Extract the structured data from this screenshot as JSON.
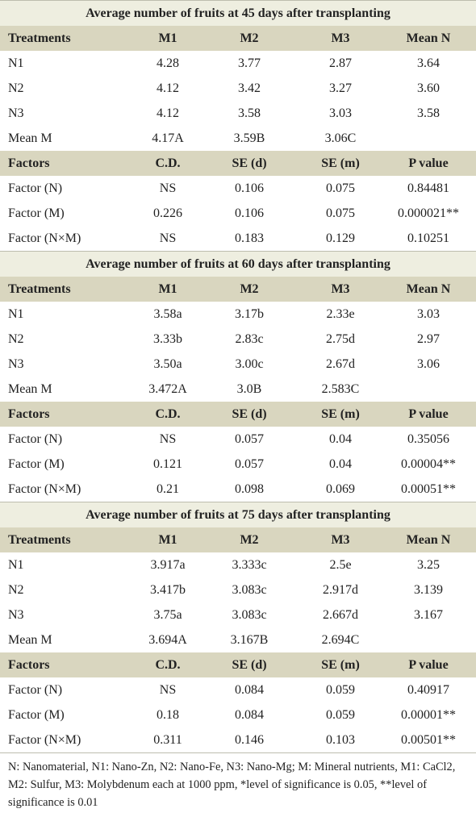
{
  "sections": [
    {
      "title": "Average number of fruits at 45 days after transplanting",
      "treat_header": [
        "Treatments",
        "M1",
        "M2",
        "M3",
        "Mean N"
      ],
      "treat_rows": [
        [
          "N1",
          "4.28",
          "3.77",
          "2.87",
          "3.64"
        ],
        [
          "N2",
          "4.12",
          "3.42",
          "3.27",
          "3.60"
        ],
        [
          "N3",
          "4.12",
          "3.58",
          "3.03",
          "3.58"
        ],
        [
          "Mean M",
          "4.17A",
          "3.59B",
          "3.06C",
          ""
        ]
      ],
      "factor_header": [
        "Factors",
        "C.D.",
        "SE (d)",
        "SE (m)",
        "P value"
      ],
      "factor_rows": [
        [
          "Factor (N)",
          "NS",
          "0.106",
          "0.075",
          "0.84481"
        ],
        [
          "Factor (M)",
          "0.226",
          "0.106",
          "0.075",
          "0.000021**"
        ],
        [
          "Factor (N×M)",
          "NS",
          "0.183",
          "0.129",
          "0.10251"
        ]
      ]
    },
    {
      "title": "Average number of fruits at 60 days after transplanting",
      "treat_header": [
        "Treatments",
        "M1",
        "M2",
        "M3",
        "Mean N"
      ],
      "treat_rows": [
        [
          "N1",
          "3.58a",
          "3.17b",
          "2.33e",
          "3.03"
        ],
        [
          "N2",
          "3.33b",
          "2.83c",
          "2.75d",
          "2.97"
        ],
        [
          "N3",
          "3.50a",
          "3.00c",
          "2.67d",
          "3.06"
        ],
        [
          "Mean M",
          "3.472A",
          "3.0B",
          "2.583C",
          ""
        ]
      ],
      "factor_header": [
        "Factors",
        "C.D.",
        "SE (d)",
        "SE (m)",
        "P value"
      ],
      "factor_rows": [
        [
          "Factor (N)",
          "NS",
          "0.057",
          "0.04",
          "0.35056"
        ],
        [
          "Factor (M)",
          "0.121",
          "0.057",
          "0.04",
          "0.00004**"
        ],
        [
          "Factor (N×M)",
          "0.21",
          "0.098",
          "0.069",
          "0.00051**"
        ]
      ]
    },
    {
      "title": "Average number of fruits at 75 days after transplanting",
      "treat_header": [
        "Treatments",
        "M1",
        "M2",
        "M3",
        "Mean N"
      ],
      "treat_rows": [
        [
          "N1",
          "3.917a",
          "3.333c",
          "2.5e",
          "3.25"
        ],
        [
          "N2",
          "3.417b",
          "3.083c",
          "2.917d",
          "3.139"
        ],
        [
          "N3",
          "3.75a",
          "3.083c",
          "2.667d",
          "3.167"
        ],
        [
          "Mean M",
          "3.694A",
          "3.167B",
          "2.694C",
          ""
        ]
      ],
      "factor_header": [
        "Factors",
        "C.D.",
        "SE (d)",
        "SE (m)",
        "P value"
      ],
      "factor_rows": [
        [
          "Factor (N)",
          "NS",
          "0.084",
          "0.059",
          "0.40917"
        ],
        [
          "Factor (M)",
          "0.18",
          "0.084",
          "0.059",
          "0.00001**"
        ],
        [
          "Factor (N×M)",
          "0.311",
          "0.146",
          "0.103",
          "0.00501**"
        ]
      ]
    }
  ],
  "footnote": "N: Nanomaterial, N1: Nano-Zn, N2: Nano-Fe, N3: Nano-Mg; M: Mineral nutrients, M1: CaCl2, M2: Sulfur, M3: Molybdenum each at 1000 ppm, *level of significance is 0.05, **level of significance is 0.01"
}
